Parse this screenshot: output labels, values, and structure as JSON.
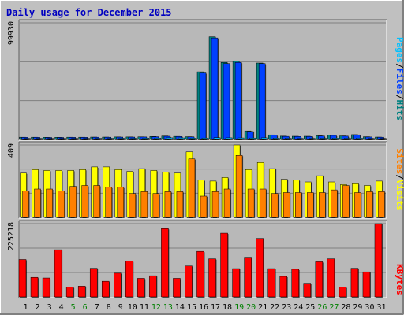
{
  "colors": {
    "background": "#c0c0c0",
    "panel": "#b8b8b8",
    "title": "#0000c0",
    "pages": "#00c0ff",
    "files": "#0040ff",
    "hits": "#008080",
    "sites": "#ff8000",
    "visits": "#ffff00",
    "kbytes": "#ff0000",
    "weekend_label": "#008000"
  },
  "chart_data": [
    {
      "type": "bar",
      "title": "Daily usage for December 2015",
      "categories": [
        "1",
        "2",
        "3",
        "4",
        "5",
        "6",
        "7",
        "8",
        "9",
        "10",
        "11",
        "12",
        "13",
        "14",
        "15",
        "16",
        "17",
        "18",
        "19",
        "20",
        "21",
        "22",
        "23",
        "24",
        "25",
        "26",
        "27",
        "28",
        "29",
        "30",
        "31"
      ],
      "weekend_days": [
        "5",
        "6",
        "12",
        "13",
        "19",
        "20",
        "26",
        "27"
      ],
      "ymax_label": "99930",
      "ylim": [
        0,
        99930
      ],
      "legend": [
        "Pages",
        "/",
        "Files",
        "/",
        "Hits"
      ],
      "series": [
        {
          "name": "Hits",
          "values": [
            1900,
            1900,
            1800,
            1800,
            1900,
            1900,
            2000,
            2000,
            2100,
            2100,
            2200,
            2500,
            2900,
            2600,
            2300,
            58000,
            88000,
            66000,
            67000,
            7300,
            65500,
            3900,
            2800,
            2700,
            2700,
            3100,
            3600,
            3000,
            4100,
            2300,
            2000
          ]
        },
        {
          "name": "Files",
          "values": [
            1800,
            1800,
            1700,
            1700,
            1800,
            1800,
            1900,
            1900,
            2000,
            2000,
            2100,
            2300,
            2700,
            2500,
            2200,
            57000,
            87000,
            65000,
            66000,
            6800,
            65000,
            3600,
            2600,
            2500,
            2500,
            2900,
            3400,
            2800,
            3900,
            2100,
            1900
          ]
        },
        {
          "name": "Pages",
          "values": [
            900,
            900,
            850,
            850,
            900,
            900,
            950,
            950,
            1000,
            1000,
            1100,
            1200,
            1400,
            1300,
            1100,
            1200,
            1500,
            1400,
            1300,
            1200,
            1400,
            1100,
            1000,
            950,
            950,
            1000,
            1100,
            1000,
            1100,
            900,
            850
          ]
        }
      ]
    },
    {
      "type": "bar",
      "categories": [
        "1",
        "2",
        "3",
        "4",
        "5",
        "6",
        "7",
        "8",
        "9",
        "10",
        "11",
        "12",
        "13",
        "14",
        "15",
        "16",
        "17",
        "18",
        "19",
        "20",
        "21",
        "22",
        "23",
        "24",
        "25",
        "26",
        "27",
        "28",
        "29",
        "30",
        "31"
      ],
      "ymax_label": "409",
      "ylim": [
        0,
        409
      ],
      "legend": [
        "Sites",
        "/",
        "Visits"
      ],
      "series": [
        {
          "name": "Visits",
          "values": [
            250,
            270,
            265,
            265,
            265,
            270,
            285,
            285,
            270,
            260,
            275,
            265,
            255,
            250,
            370,
            210,
            205,
            225,
            409,
            270,
            310,
            275,
            215,
            210,
            200,
            235,
            200,
            185,
            190,
            180,
            205
          ]
        },
        {
          "name": "Sites",
          "values": [
            150,
            160,
            160,
            150,
            175,
            180,
            180,
            170,
            170,
            135,
            145,
            135,
            145,
            145,
            330,
            120,
            145,
            160,
            350,
            160,
            160,
            135,
            140,
            140,
            140,
            140,
            155,
            180,
            140,
            145,
            145
          ]
        }
      ]
    },
    {
      "type": "bar",
      "categories": [
        "1",
        "2",
        "3",
        "4",
        "5",
        "6",
        "7",
        "8",
        "9",
        "10",
        "11",
        "12",
        "13",
        "14",
        "15",
        "16",
        "17",
        "18",
        "19",
        "20",
        "21",
        "22",
        "23",
        "24",
        "25",
        "26",
        "27",
        "28",
        "29",
        "30",
        "31"
      ],
      "ymax_label": "225218",
      "ylim": [
        0,
        225218
      ],
      "legend": [
        "KBytes"
      ],
      "series": [
        {
          "name": "KBytes",
          "values": [
            115000,
            60000,
            58000,
            145000,
            30000,
            33000,
            88000,
            48000,
            73000,
            110000,
            57000,
            65000,
            210000,
            57000,
            95000,
            140000,
            117000,
            196000,
            87000,
            122000,
            180000,
            87000,
            63000,
            85000,
            42000,
            108000,
            117000,
            30000,
            88000,
            77000,
            225218
          ]
        }
      ]
    }
  ]
}
